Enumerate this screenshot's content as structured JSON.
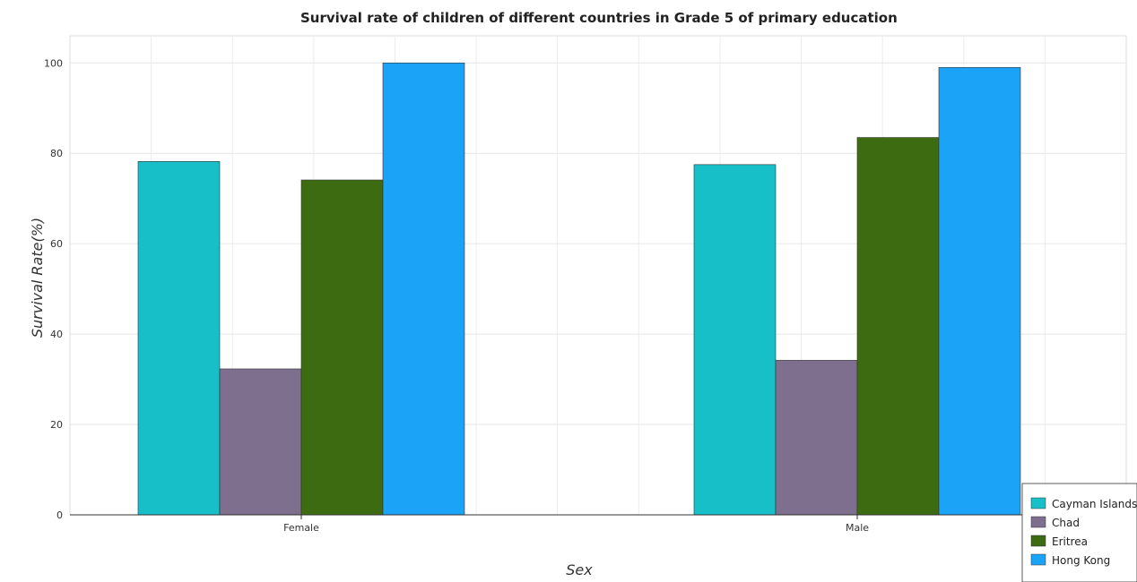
{
  "chart_data": {
    "type": "bar",
    "title": "Survival rate of children of different countries in Grade 5 of primary education",
    "xlabel": "Sex",
    "ylabel": "Survival Rate(%)",
    "categories": [
      "Female",
      "Male"
    ],
    "ylim": [
      0,
      106
    ],
    "yticks": [
      "0",
      "20",
      "40",
      "60",
      "80",
      "100"
    ],
    "grid": true,
    "legend_position": "bottom-right",
    "series": [
      {
        "name": "Cayman Islands",
        "color": "#17bfc9",
        "values": [
          78.2,
          77.5
        ]
      },
      {
        "name": "Chad",
        "color": "#7f6f8f",
        "values": [
          32.3,
          34.2
        ]
      },
      {
        "name": "Eritrea",
        "color": "#3d6b12",
        "values": [
          74.1,
          83.5
        ]
      },
      {
        "name": "Hong Kong",
        "color": "#1aa3f7",
        "values": [
          100.0,
          99.0
        ]
      }
    ]
  }
}
